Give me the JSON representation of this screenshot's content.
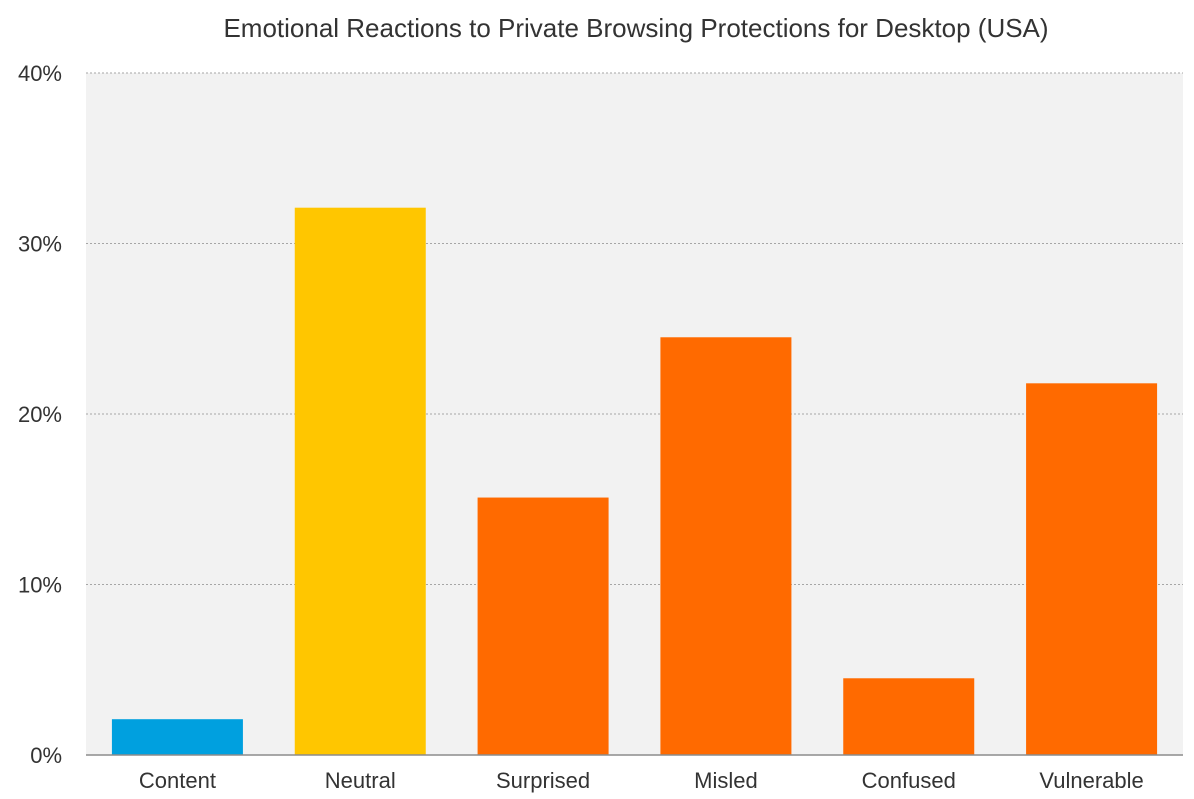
{
  "chart_data": {
    "type": "bar",
    "title": "Emotional Reactions to Private Browsing Protections for Desktop (USA)",
    "xlabel": "",
    "ylabel": "",
    "categories": [
      "Content",
      "Neutral",
      "Surprised",
      "Misled",
      "Confused",
      "Vulnerable"
    ],
    "values": [
      2.1,
      32.1,
      15.1,
      24.5,
      4.5,
      21.8
    ],
    "bar_colors": [
      "#00A0DF",
      "#FFC600",
      "#FF6A00",
      "#FF6A00",
      "#FF6A00",
      "#FF6A00"
    ],
    "ylim": [
      0,
      40
    ],
    "yticks": [
      0,
      10,
      20,
      30,
      40
    ],
    "ytick_labels": [
      "0%",
      "10%",
      "20%",
      "30%",
      "40%"
    ],
    "grid": true,
    "plot_background": "#F2F2F2",
    "gridline_color": "#A6A6A6"
  }
}
